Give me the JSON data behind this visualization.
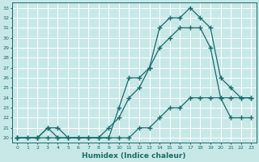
{
  "xlabel": "Humidex (Indice chaleur)",
  "bg_color": "#c8e8e8",
  "grid_color": "#ffffff",
  "line_color": "#1a6b6b",
  "xlim": [
    -0.5,
    23.5
  ],
  "ylim": [
    19.5,
    33.5
  ],
  "xticks": [
    0,
    1,
    2,
    3,
    4,
    5,
    6,
    7,
    8,
    9,
    10,
    11,
    12,
    13,
    14,
    15,
    16,
    17,
    18,
    19,
    20,
    21,
    22,
    23
  ],
  "yticks": [
    20,
    21,
    22,
    23,
    24,
    25,
    26,
    27,
    28,
    29,
    30,
    31,
    32,
    33
  ],
  "line1_x": [
    0,
    1,
    2,
    3,
    4,
    5,
    6,
    7,
    8,
    9,
    10,
    11,
    12,
    13,
    14,
    15,
    16,
    17,
    18,
    19,
    20,
    21,
    22,
    23
  ],
  "line1_y": [
    20,
    20,
    20,
    21,
    21,
    20,
    20,
    20,
    20,
    20,
    23,
    26,
    26,
    27,
    31,
    32,
    32,
    33,
    32,
    31,
    26,
    25,
    24,
    24
  ],
  "line2_x": [
    0,
    1,
    2,
    3,
    4,
    5,
    6,
    7,
    8,
    9,
    10,
    11,
    12,
    13,
    14,
    15,
    16,
    17,
    18,
    19,
    20,
    21,
    22,
    23
  ],
  "line2_y": [
    20,
    20,
    20,
    21,
    20,
    20,
    20,
    20,
    20,
    21,
    22,
    24,
    25,
    27,
    29,
    30,
    31,
    31,
    31,
    29,
    24,
    22,
    22,
    22
  ],
  "line3_x": [
    0,
    2,
    3,
    4,
    9,
    10,
    11,
    12,
    13,
    14,
    15,
    16,
    17,
    18,
    19,
    20,
    21,
    22,
    23
  ],
  "line3_y": [
    20,
    20,
    20,
    20,
    20,
    20,
    20,
    21,
    21,
    22,
    23,
    23,
    24,
    24,
    24,
    24,
    24,
    24,
    24
  ]
}
